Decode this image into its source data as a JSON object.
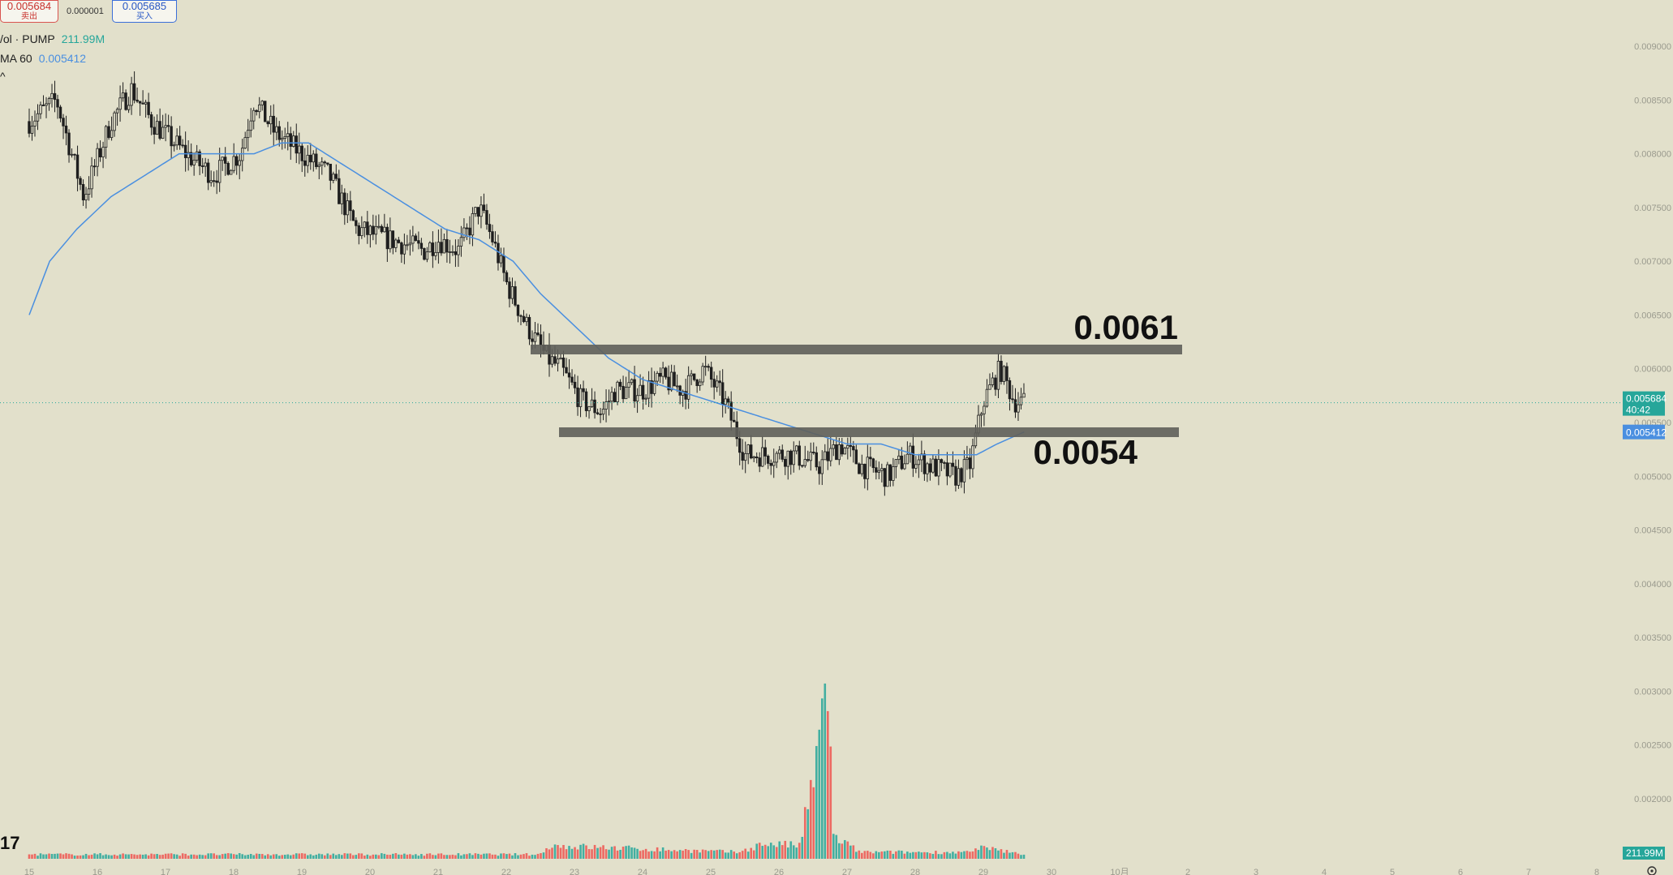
{
  "header": {
    "sell_price": "0.005684",
    "sell_label": "卖出",
    "spread": "0.000001",
    "buy_price": "0.005685",
    "buy_label": "买入"
  },
  "legend": {
    "volume_label": "/ol · PUMP",
    "volume_value": "211.99M",
    "ma_label": "MA 60",
    "ma_value": "0.005412",
    "collapse_glyph": "^",
    "corner_text": "17"
  },
  "colors": {
    "background": "#e2e0cb",
    "candle": "#1f1f1f",
    "ma": "#4a8fe0",
    "vol_up": "#26a69a",
    "vol_down": "#ef5350",
    "level_band": "#5f5f5a",
    "current_price_tag": "#26a69a",
    "ma_tag": "#4a8fe0"
  },
  "chart_data": {
    "type": "candlestick",
    "price_axis": {
      "range": [
        0.0017,
        0.0092
      ],
      "ticks": [
        "0.009000",
        "0.008500",
        "0.008000",
        "0.007500",
        "0.007000",
        "0.006500",
        "0.006000",
        "0.005500",
        "0.005000",
        "0.004500",
        "0.004000",
        "0.003500",
        "0.003000",
        "0.002500",
        "0.002000"
      ]
    },
    "date_axis": {
      "ticks": [
        "15",
        "16",
        "17",
        "18",
        "19",
        "20",
        "21",
        "22",
        "23",
        "24",
        "25",
        "26",
        "27",
        "28",
        "29",
        "30",
        "10月",
        "2",
        "3",
        "4",
        "5",
        "6",
        "7",
        "8"
      ]
    },
    "current_price": {
      "value": 0.005684,
      "label": "0.005684",
      "countdown": "40:42"
    },
    "ma_tag": {
      "value": 0.005412,
      "label": "0.005412"
    },
    "volume_tag": "211.99M",
    "levels": [
      {
        "value": 0.0061,
        "label": "0.0061"
      },
      {
        "value": 0.0054,
        "label": "0.0054"
      }
    ],
    "price_path": [
      [
        15.0,
        0.0083
      ],
      [
        15.4,
        0.0085
      ],
      [
        15.8,
        0.0076
      ],
      [
        16.2,
        0.0083
      ],
      [
        16.5,
        0.0086
      ],
      [
        16.8,
        0.0083
      ],
      [
        17.3,
        0.008
      ],
      [
        17.7,
        0.0078
      ],
      [
        18.1,
        0.008
      ],
      [
        18.3,
        0.0085
      ],
      [
        18.6,
        0.0082
      ],
      [
        19.0,
        0.008
      ],
      [
        19.4,
        0.0078
      ],
      [
        19.8,
        0.0073
      ],
      [
        20.3,
        0.0072
      ],
      [
        20.8,
        0.0071
      ],
      [
        21.0,
        0.0072
      ],
      [
        21.3,
        0.0071
      ],
      [
        21.6,
        0.0075
      ],
      [
        21.8,
        0.0072
      ],
      [
        22.0,
        0.0068
      ],
      [
        22.3,
        0.0064
      ],
      [
        22.6,
        0.0061
      ],
      [
        22.8,
        0.006
      ],
      [
        23.1,
        0.0057
      ],
      [
        23.4,
        0.0056
      ],
      [
        23.6,
        0.0058
      ],
      [
        24.0,
        0.0058
      ],
      [
        24.3,
        0.0059
      ],
      [
        24.6,
        0.0058
      ],
      [
        24.9,
        0.006
      ],
      [
        25.2,
        0.0057
      ],
      [
        25.5,
        0.0052
      ],
      [
        25.8,
        0.0052
      ],
      [
        26.2,
        0.0052
      ],
      [
        26.6,
        0.0051
      ],
      [
        26.9,
        0.0053
      ],
      [
        27.2,
        0.0051
      ],
      [
        27.6,
        0.005
      ],
      [
        27.9,
        0.0052
      ],
      [
        28.2,
        0.0051
      ],
      [
        28.6,
        0.005
      ],
      [
        28.8,
        0.0051
      ],
      [
        29.0,
        0.0057
      ],
      [
        29.25,
        0.006
      ],
      [
        29.45,
        0.0057
      ],
      [
        29.6,
        0.005684
      ]
    ],
    "ma_path": [
      [
        15.0,
        0.0065
      ],
      [
        15.3,
        0.007
      ],
      [
        15.7,
        0.0073
      ],
      [
        16.2,
        0.0076
      ],
      [
        16.7,
        0.0078
      ],
      [
        17.2,
        0.008
      ],
      [
        17.8,
        0.008
      ],
      [
        18.3,
        0.008
      ],
      [
        18.7,
        0.0081
      ],
      [
        19.1,
        0.0081
      ],
      [
        19.6,
        0.0079
      ],
      [
        20.1,
        0.0077
      ],
      [
        20.6,
        0.0075
      ],
      [
        21.1,
        0.0073
      ],
      [
        21.6,
        0.0072
      ],
      [
        22.1,
        0.007
      ],
      [
        22.5,
        0.0067
      ],
      [
        23.0,
        0.0064
      ],
      [
        23.5,
        0.0061
      ],
      [
        24.0,
        0.0059
      ],
      [
        24.5,
        0.0058
      ],
      [
        25.0,
        0.0057
      ],
      [
        25.5,
        0.0056
      ],
      [
        26.0,
        0.0055
      ],
      [
        26.5,
        0.0054
      ],
      [
        27.0,
        0.0053
      ],
      [
        27.5,
        0.0053
      ],
      [
        28.0,
        0.0052
      ],
      [
        28.5,
        0.0052
      ],
      [
        28.9,
        0.0052
      ],
      [
        29.2,
        0.0053
      ],
      [
        29.6,
        0.005412
      ]
    ],
    "volume_path": [
      [
        15.0,
        0.02
      ],
      [
        22.5,
        0.02
      ],
      [
        22.62,
        0.06
      ],
      [
        25.4,
        0.03
      ],
      [
        25.8,
        0.07
      ],
      [
        26.3,
        0.06
      ],
      [
        26.6,
        0.5
      ],
      [
        26.7,
        1.0
      ],
      [
        26.8,
        0.1
      ],
      [
        27.2,
        0.03
      ],
      [
        28.8,
        0.03
      ],
      [
        29.0,
        0.05
      ],
      [
        29.6,
        0.02
      ]
    ],
    "volume_scale_note": ""
  }
}
